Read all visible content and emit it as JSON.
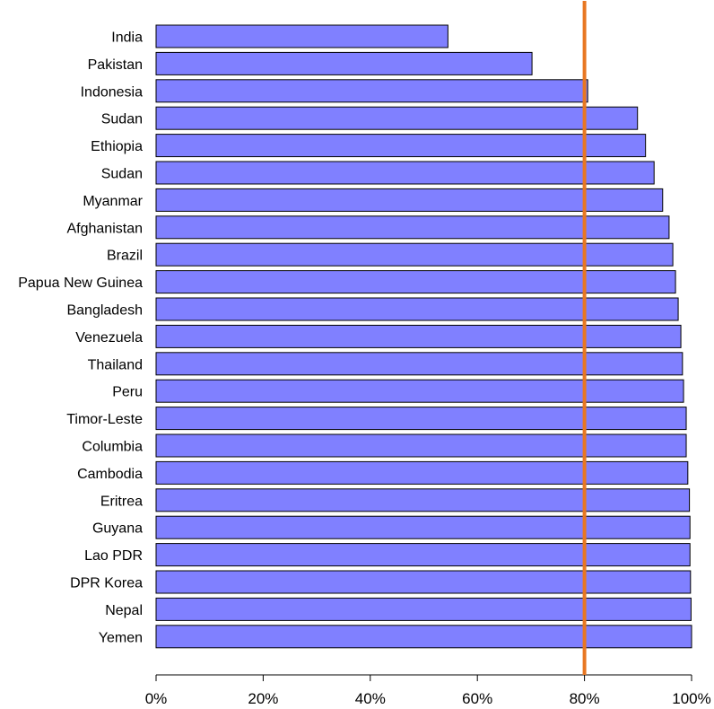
{
  "chart_data": {
    "type": "bar",
    "orientation": "horizontal",
    "categories": [
      "India",
      "Pakistan",
      "Indonesia",
      "Sudan",
      "Ethiopia",
      "Sudan",
      "Myanmar",
      "Afghanistan",
      "Brazil",
      "Papua New Guinea",
      "Bangladesh",
      "Venezuela",
      "Thailand",
      "Peru",
      "Timor-Leste",
      "Columbia",
      "Cambodia",
      "Eritrea",
      "Guyana",
      "Lao PDR",
      "DPR Korea",
      "Nepal",
      "Yemen"
    ],
    "values": [
      54.5,
      70.2,
      80.6,
      89.9,
      91.4,
      93.0,
      94.6,
      95.8,
      96.5,
      97.0,
      97.5,
      98.0,
      98.3,
      98.5,
      99.0,
      99.0,
      99.3,
      99.6,
      99.7,
      99.7,
      99.8,
      99.9,
      100.0
    ],
    "xlim": [
      0,
      100
    ],
    "xticks": [
      "0%",
      "20%",
      "40%",
      "60%",
      "80%",
      "100%"
    ],
    "xtick_values": [
      0,
      20,
      40,
      60,
      80,
      100
    ],
    "reference_line": {
      "value": 80,
      "color": "#e87722"
    },
    "title": "",
    "xlabel": "",
    "ylabel": "",
    "grid": false,
    "bar_color": "#8080ff",
    "bar_edge_color": "#000000"
  }
}
